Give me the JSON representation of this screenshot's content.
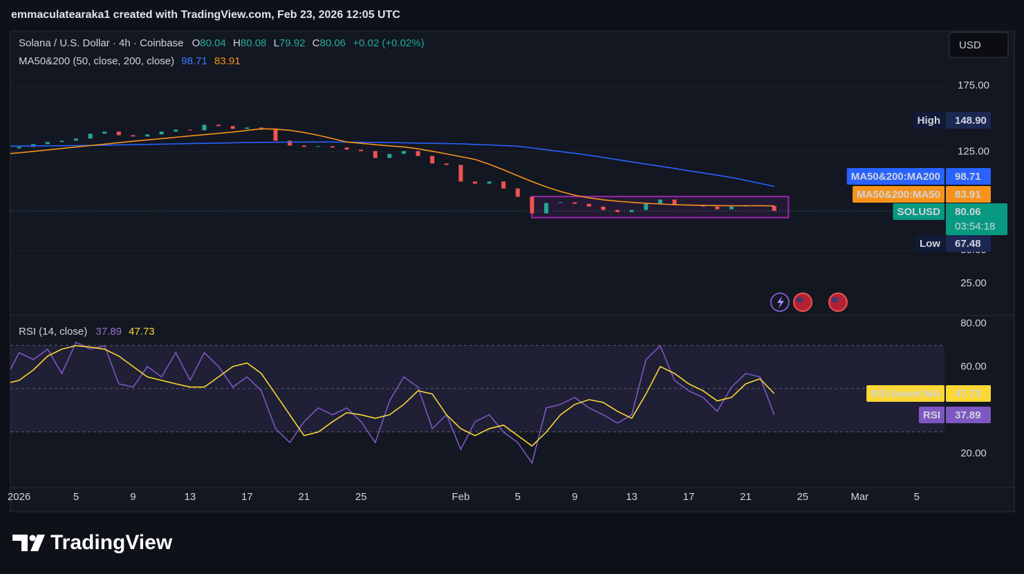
{
  "header": "emmaculatearaka1 created with TradingView.com, Feb 23, 2026 12:05 UTC",
  "logo": "TradingView",
  "currency": "USD",
  "chart_data": [
    {
      "type": "candlestick",
      "title": "Solana / U.S. Dollar · 4h · Coinbase",
      "ohlc": [
        {
          "label": "O",
          "value": 80.04
        },
        {
          "label": "H",
          "value": 80.08
        },
        {
          "label": "L",
          "value": 79.92
        },
        {
          "label": "C",
          "value": 80.06
        }
      ],
      "change": "+0.02 (+0.02%)",
      "indicator": "MA50&200 (50, close, 200, close)",
      "high": {
        "label": "High",
        "value": 148.9,
        "value_label": "148.90"
      },
      "low": {
        "label": "Low",
        "value": 67.48
      },
      "countdown": "03:54:18",
      "up_color": "#26a69a",
      "down_color": "#ef5350",
      "x": [
        "2025-12-31",
        "2026-01-01",
        "2026-01-02",
        "2026-01-03",
        "2026-01-04",
        "2026-01-05",
        "2026-01-06",
        "2026-01-07",
        "2026-01-08",
        "2026-01-09",
        "2026-01-10",
        "2026-01-11",
        "2026-01-12",
        "2026-01-13",
        "2026-01-14",
        "2026-01-15",
        "2026-01-16",
        "2026-01-17",
        "2026-01-18",
        "2026-01-19",
        "2026-01-20",
        "2026-01-21",
        "2026-01-22",
        "2026-01-23",
        "2026-01-24",
        "2026-01-25",
        "2026-01-26",
        "2026-01-27",
        "2026-01-28",
        "2026-01-29",
        "2026-01-30",
        "2026-01-31",
        "2026-02-01",
        "2026-02-02",
        "2026-02-03",
        "2026-02-04",
        "2026-02-05",
        "2026-02-06",
        "2026-02-07",
        "2026-02-08",
        "2026-02-09",
        "2026-02-10",
        "2026-02-11",
        "2026-02-12",
        "2026-02-13",
        "2026-02-14",
        "2026-02-15",
        "2026-02-16",
        "2026-02-17",
        "2026-02-18",
        "2026-02-19",
        "2026-02-20",
        "2026-02-21",
        "2026-02-22",
        "2026-02-23"
      ],
      "series": [
        {
          "name": "SOLUSD",
          "values": [
            127.6,
            128.7,
            130.8,
            132.4,
            133.4,
            135,
            138.7,
            140.3,
            137.6,
            136.6,
            138.2,
            140.3,
            141.8,
            141.3,
            145.5,
            144.5,
            142.4,
            143.4,
            141.8,
            133.4,
            129.7,
            128.7,
            129.2,
            128.2,
            126.6,
            125.5,
            120.3,
            123.4,
            125.5,
            121.8,
            116.1,
            115,
            102.4,
            100.8,
            102.4,
            97.1,
            90.8,
            78.2,
            86.1,
            86.6,
            85.5,
            83.4,
            80.8,
            79.2,
            80.8,
            85.5,
            88.7,
            85,
            84.5,
            83.4,
            81.3,
            83.4,
            84.5,
            83.9,
            80.06
          ]
        },
        {
          "name": "MA50&200:MA200",
          "color": "#2962ff",
          "values": [
            129.2,
            129.3,
            129.4,
            129.5,
            129.6,
            129.7,
            129.8,
            130,
            130.2,
            130.4,
            130.6,
            130.8,
            131,
            131.2,
            131.4,
            131.6,
            131.8,
            132,
            132.1,
            132.2,
            132.3,
            132.4,
            132.4,
            132.4,
            132.3,
            132.2,
            132.1,
            132,
            131.8,
            131.6,
            131.4,
            131.2,
            131,
            130.6,
            130.2,
            129.7,
            129.2,
            127.9,
            126.5,
            125.1,
            123.8,
            122.4,
            120.7,
            119,
            117.3,
            115.6,
            114,
            112.3,
            110.6,
            108.9,
            107.2,
            105.5,
            103.3,
            101,
            98.71
          ]
        },
        {
          "name": "MA50&200:MA50",
          "color": "#f7931a",
          "values": [
            123.4,
            124.2,
            125.3,
            126.4,
            127.5,
            128.6,
            129.7,
            130.8,
            131.9,
            133,
            134,
            135,
            136,
            137,
            138,
            139,
            140,
            141.2,
            142.4,
            142.2,
            141.3,
            139.6,
            137.5,
            135,
            132.4,
            131.4,
            130.4,
            129.5,
            128.7,
            127.2,
            125.4,
            123.4,
            121.3,
            119.2,
            115.5,
            111.3,
            106.8,
            102.4,
            98.3,
            94.8,
            92,
            90,
            88.5,
            87.4,
            86.6,
            85.9,
            85.3,
            84.8,
            84.5,
            84.3,
            84.1,
            84,
            84,
            84,
            83.91
          ]
        }
      ],
      "box": {
        "x0": "2026-02-06",
        "x1": "2026-02-24",
        "y0": 75,
        "y1": 91,
        "color": "#9c27b0"
      },
      "xlim": [
        "2025-12-31",
        "2026-03-07"
      ],
      "ylim": [
        1.3,
        216.6
      ],
      "yticks": [
        {
          "value": 25,
          "label": "25.00"
        },
        {
          "value": 50,
          "label": "50.00"
        },
        {
          "value": 125,
          "label": "125.00"
        },
        {
          "value": 175,
          "label": "175.00"
        }
      ],
      "grid": true
    },
    {
      "type": "line",
      "title": "RSI (14, close)",
      "x": [
        "2025-12-31",
        "2026-01-01",
        "2026-01-02",
        "2026-01-03",
        "2026-01-04",
        "2026-01-05",
        "2026-01-06",
        "2026-01-07",
        "2026-01-08",
        "2026-01-09",
        "2026-01-10",
        "2026-01-11",
        "2026-01-12",
        "2026-01-13",
        "2026-01-14",
        "2026-01-15",
        "2026-01-16",
        "2026-01-17",
        "2026-01-18",
        "2026-01-19",
        "2026-01-20",
        "2026-01-21",
        "2026-01-22",
        "2026-01-23",
        "2026-01-24",
        "2026-01-25",
        "2026-01-26",
        "2026-01-27",
        "2026-01-28",
        "2026-01-29",
        "2026-01-30",
        "2026-01-31",
        "2026-02-01",
        "2026-02-02",
        "2026-02-03",
        "2026-02-04",
        "2026-02-05",
        "2026-02-06",
        "2026-02-07",
        "2026-02-08",
        "2026-02-09",
        "2026-02-10",
        "2026-02-11",
        "2026-02-12",
        "2026-02-13",
        "2026-02-14",
        "2026-02-15",
        "2026-02-16",
        "2026-02-17",
        "2026-02-18",
        "2026-02-19",
        "2026-02-20",
        "2026-02-21",
        "2026-02-22",
        "2026-02-23"
      ],
      "series": [
        {
          "name": "RSI",
          "color": "#7e57c2",
          "values": [
            53.8,
            66.6,
            63.4,
            68.2,
            57,
            71.4,
            68.2,
            69.8,
            52.2,
            50.7,
            60.2,
            55.4,
            66.6,
            53.8,
            66.6,
            60.2,
            50.7,
            55.4,
            49,
            31.5,
            25.1,
            34.7,
            41.1,
            37.9,
            41.1,
            34.7,
            25.1,
            44.3,
            55.4,
            50.7,
            31.5,
            37.9,
            21.9,
            34.7,
            37.9,
            29.9,
            25.1,
            15.6,
            41.1,
            42.7,
            45.9,
            41.1,
            37.9,
            34.1,
            37.9,
            63.4,
            69.8,
            53.8,
            49,
            45.9,
            39.5,
            50.7,
            57,
            55.4,
            37.89
          ]
        },
        {
          "name": "RSI-based MA",
          "color": "#fdd835",
          "values": [
            52.2,
            53.8,
            58.6,
            65,
            68.2,
            69.8,
            69.2,
            68.2,
            65,
            60.2,
            55.4,
            53.8,
            52.2,
            50.7,
            50.7,
            55.4,
            60.2,
            61.8,
            57,
            47.5,
            37.9,
            28.3,
            29.9,
            34.7,
            38.9,
            37.9,
            36.3,
            37.9,
            42.7,
            49,
            47.5,
            37.9,
            31.5,
            28.3,
            31.5,
            33.1,
            28.3,
            23.5,
            29.9,
            37.9,
            42.7,
            44.9,
            43.6,
            39.5,
            36.3,
            47.5,
            60.2,
            57,
            52.2,
            49,
            44.3,
            45.9,
            52.2,
            54.5,
            47.73
          ]
        }
      ],
      "levels": [
        70,
        50,
        30
      ],
      "xlim": [
        "2025-12-31",
        "2026-03-07"
      ],
      "ylim": [
        4.3,
        83.5
      ],
      "yticks": [
        {
          "value": 20,
          "label": "20.00"
        },
        {
          "value": 60,
          "label": "60.00"
        },
        {
          "value": 80,
          "label": "80.00"
        }
      ],
      "xticks": [
        {
          "value": "2026-01-01",
          "label": "2026"
        },
        {
          "value": "2026-01-05",
          "label": "5"
        },
        {
          "value": "2026-01-09",
          "label": "9"
        },
        {
          "value": "2026-01-13",
          "label": "13"
        },
        {
          "value": "2026-01-17",
          "label": "17"
        },
        {
          "value": "2026-01-21",
          "label": "21"
        },
        {
          "value": "2026-01-25",
          "label": "25"
        },
        {
          "value": "2026-02-01",
          "label": "Feb"
        },
        {
          "value": "2026-02-05",
          "label": "5"
        },
        {
          "value": "2026-02-09",
          "label": "9"
        },
        {
          "value": "2026-02-13",
          "label": "13"
        },
        {
          "value": "2026-02-17",
          "label": "17"
        },
        {
          "value": "2026-02-21",
          "label": "21"
        },
        {
          "value": "2026-02-25",
          "label": "25"
        },
        {
          "value": "2026-03-01",
          "label": "Mar"
        },
        {
          "value": "2026-03-05",
          "label": "5"
        }
      ]
    }
  ]
}
